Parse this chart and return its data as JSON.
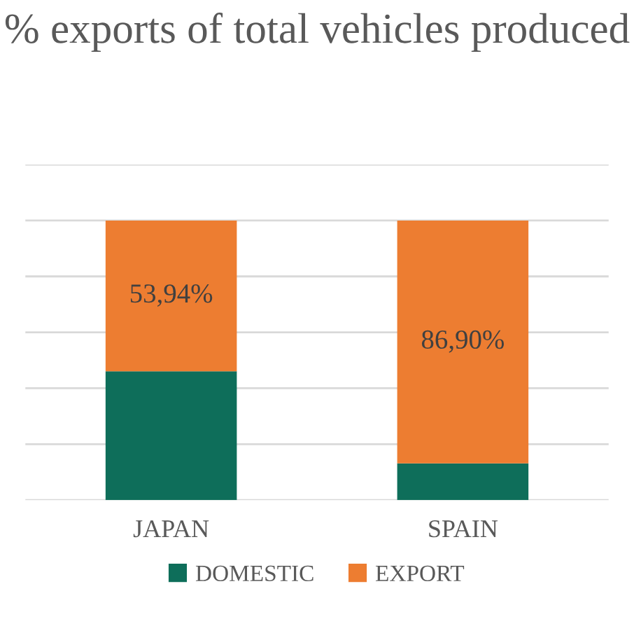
{
  "chart_data": {
    "type": "bar",
    "stacked": true,
    "title": "% exports of total vehicles produced",
    "categories": [
      "JAPAN",
      "SPAIN"
    ],
    "series": [
      {
        "name": "DOMESTIC",
        "color": "#0e6e5a",
        "values": [
          46.06,
          13.1
        ]
      },
      {
        "name": "EXPORT",
        "color": "#ed7d31",
        "values": [
          53.94,
          86.9
        ],
        "value_labels": [
          "53,94%",
          "86,90%"
        ]
      }
    ],
    "ylim": [
      0,
      120
    ],
    "yticks": [
      {
        "value": 0,
        "label": null
      },
      {
        "value": 20,
        "label": null
      },
      {
        "value": 40,
        "label": null
      },
      {
        "value": 60,
        "label": null
      },
      {
        "value": 80,
        "label": null
      },
      {
        "value": 100,
        "label": null
      },
      {
        "value": 120,
        "label": null
      }
    ],
    "tick_labels": "x",
    "grid": "y",
    "legend": "bottom"
  }
}
